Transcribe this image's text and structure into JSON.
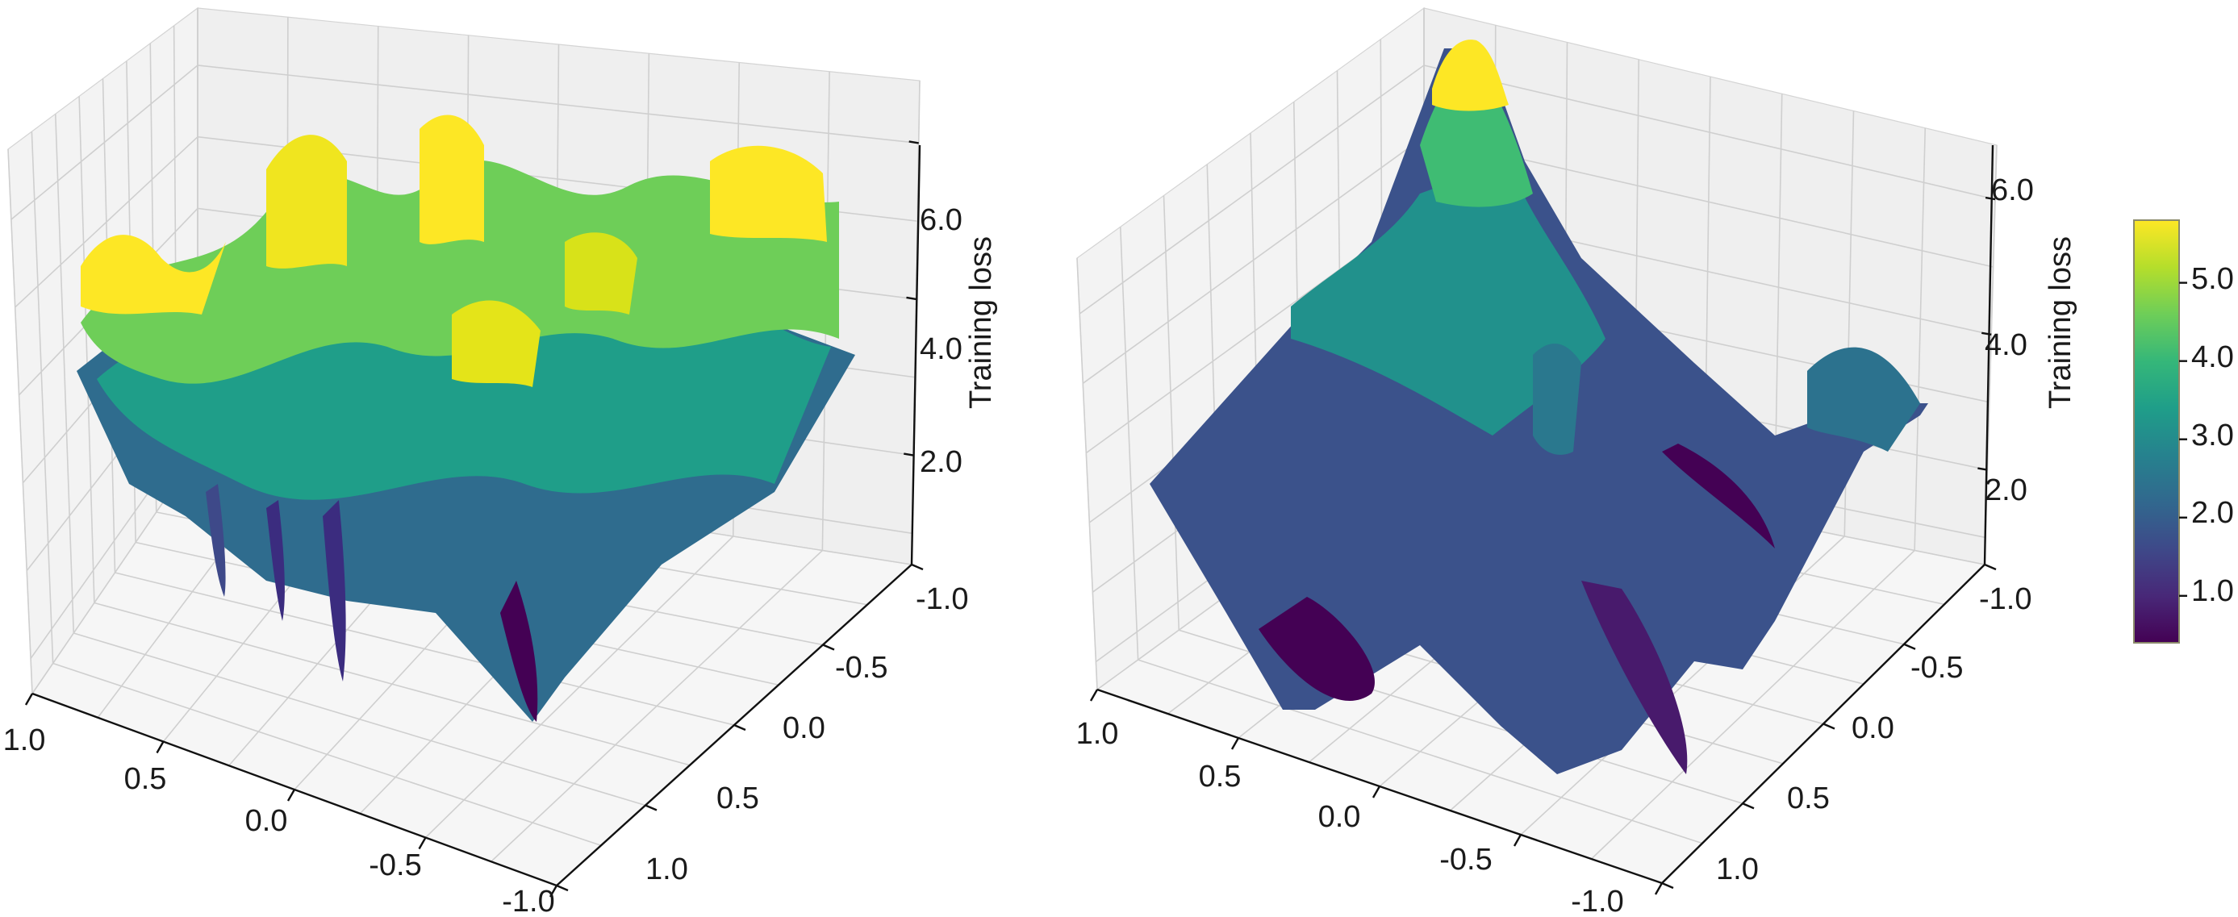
{
  "chart_data": [
    {
      "type": "surface",
      "name": "left-surface",
      "zlabel": "Training loss",
      "x_ticks": [
        "1.0",
        "0.5",
        "0.0",
        "-0.5",
        "-1.0"
      ],
      "y_ticks": [
        "-1.0",
        "-0.5",
        "0.0",
        "0.5",
        "1.0"
      ],
      "z_ticks": [
        "2.0",
        "4.0",
        "6.0"
      ],
      "xlim": [
        -1.0,
        1.0
      ],
      "ylim": [
        -1.0,
        1.0
      ],
      "zlim": [
        0.6,
        6.8
      ],
      "colormap": "viridis",
      "grid": true,
      "loss_range": [
        0.5,
        5.8
      ],
      "description": "rugged landscape with many sharp minima and high plateaus"
    },
    {
      "type": "surface",
      "name": "right-surface",
      "zlabel": "Training loss",
      "x_ticks": [
        "1.0",
        "0.5",
        "0.0",
        "-0.5",
        "-1.0"
      ],
      "y_ticks": [
        "-1.0",
        "-0.5",
        "0.0",
        "0.5",
        "1.0"
      ],
      "z_ticks": [
        "2.0",
        "4.0",
        "6.0"
      ],
      "xlim": [
        -1.0,
        1.0
      ],
      "ylim": [
        -1.0,
        1.0
      ],
      "zlim": [
        0.6,
        6.8
      ],
      "colormap": "viridis",
      "grid": true,
      "loss_range": [
        0.4,
        6.4
      ],
      "description": "smoother landscape with one tall peak and a few broad valleys"
    }
  ],
  "colorbar": {
    "ticks": [
      "1.0",
      "2.0",
      "3.0",
      "4.0",
      "5.0"
    ],
    "range": [
      0.4,
      5.8
    ],
    "colors": [
      "#440154",
      "#482878",
      "#3e4989",
      "#31688e",
      "#26828e",
      "#1f9e89",
      "#35b779",
      "#6ece58",
      "#b5de2b",
      "#fde725"
    ]
  }
}
